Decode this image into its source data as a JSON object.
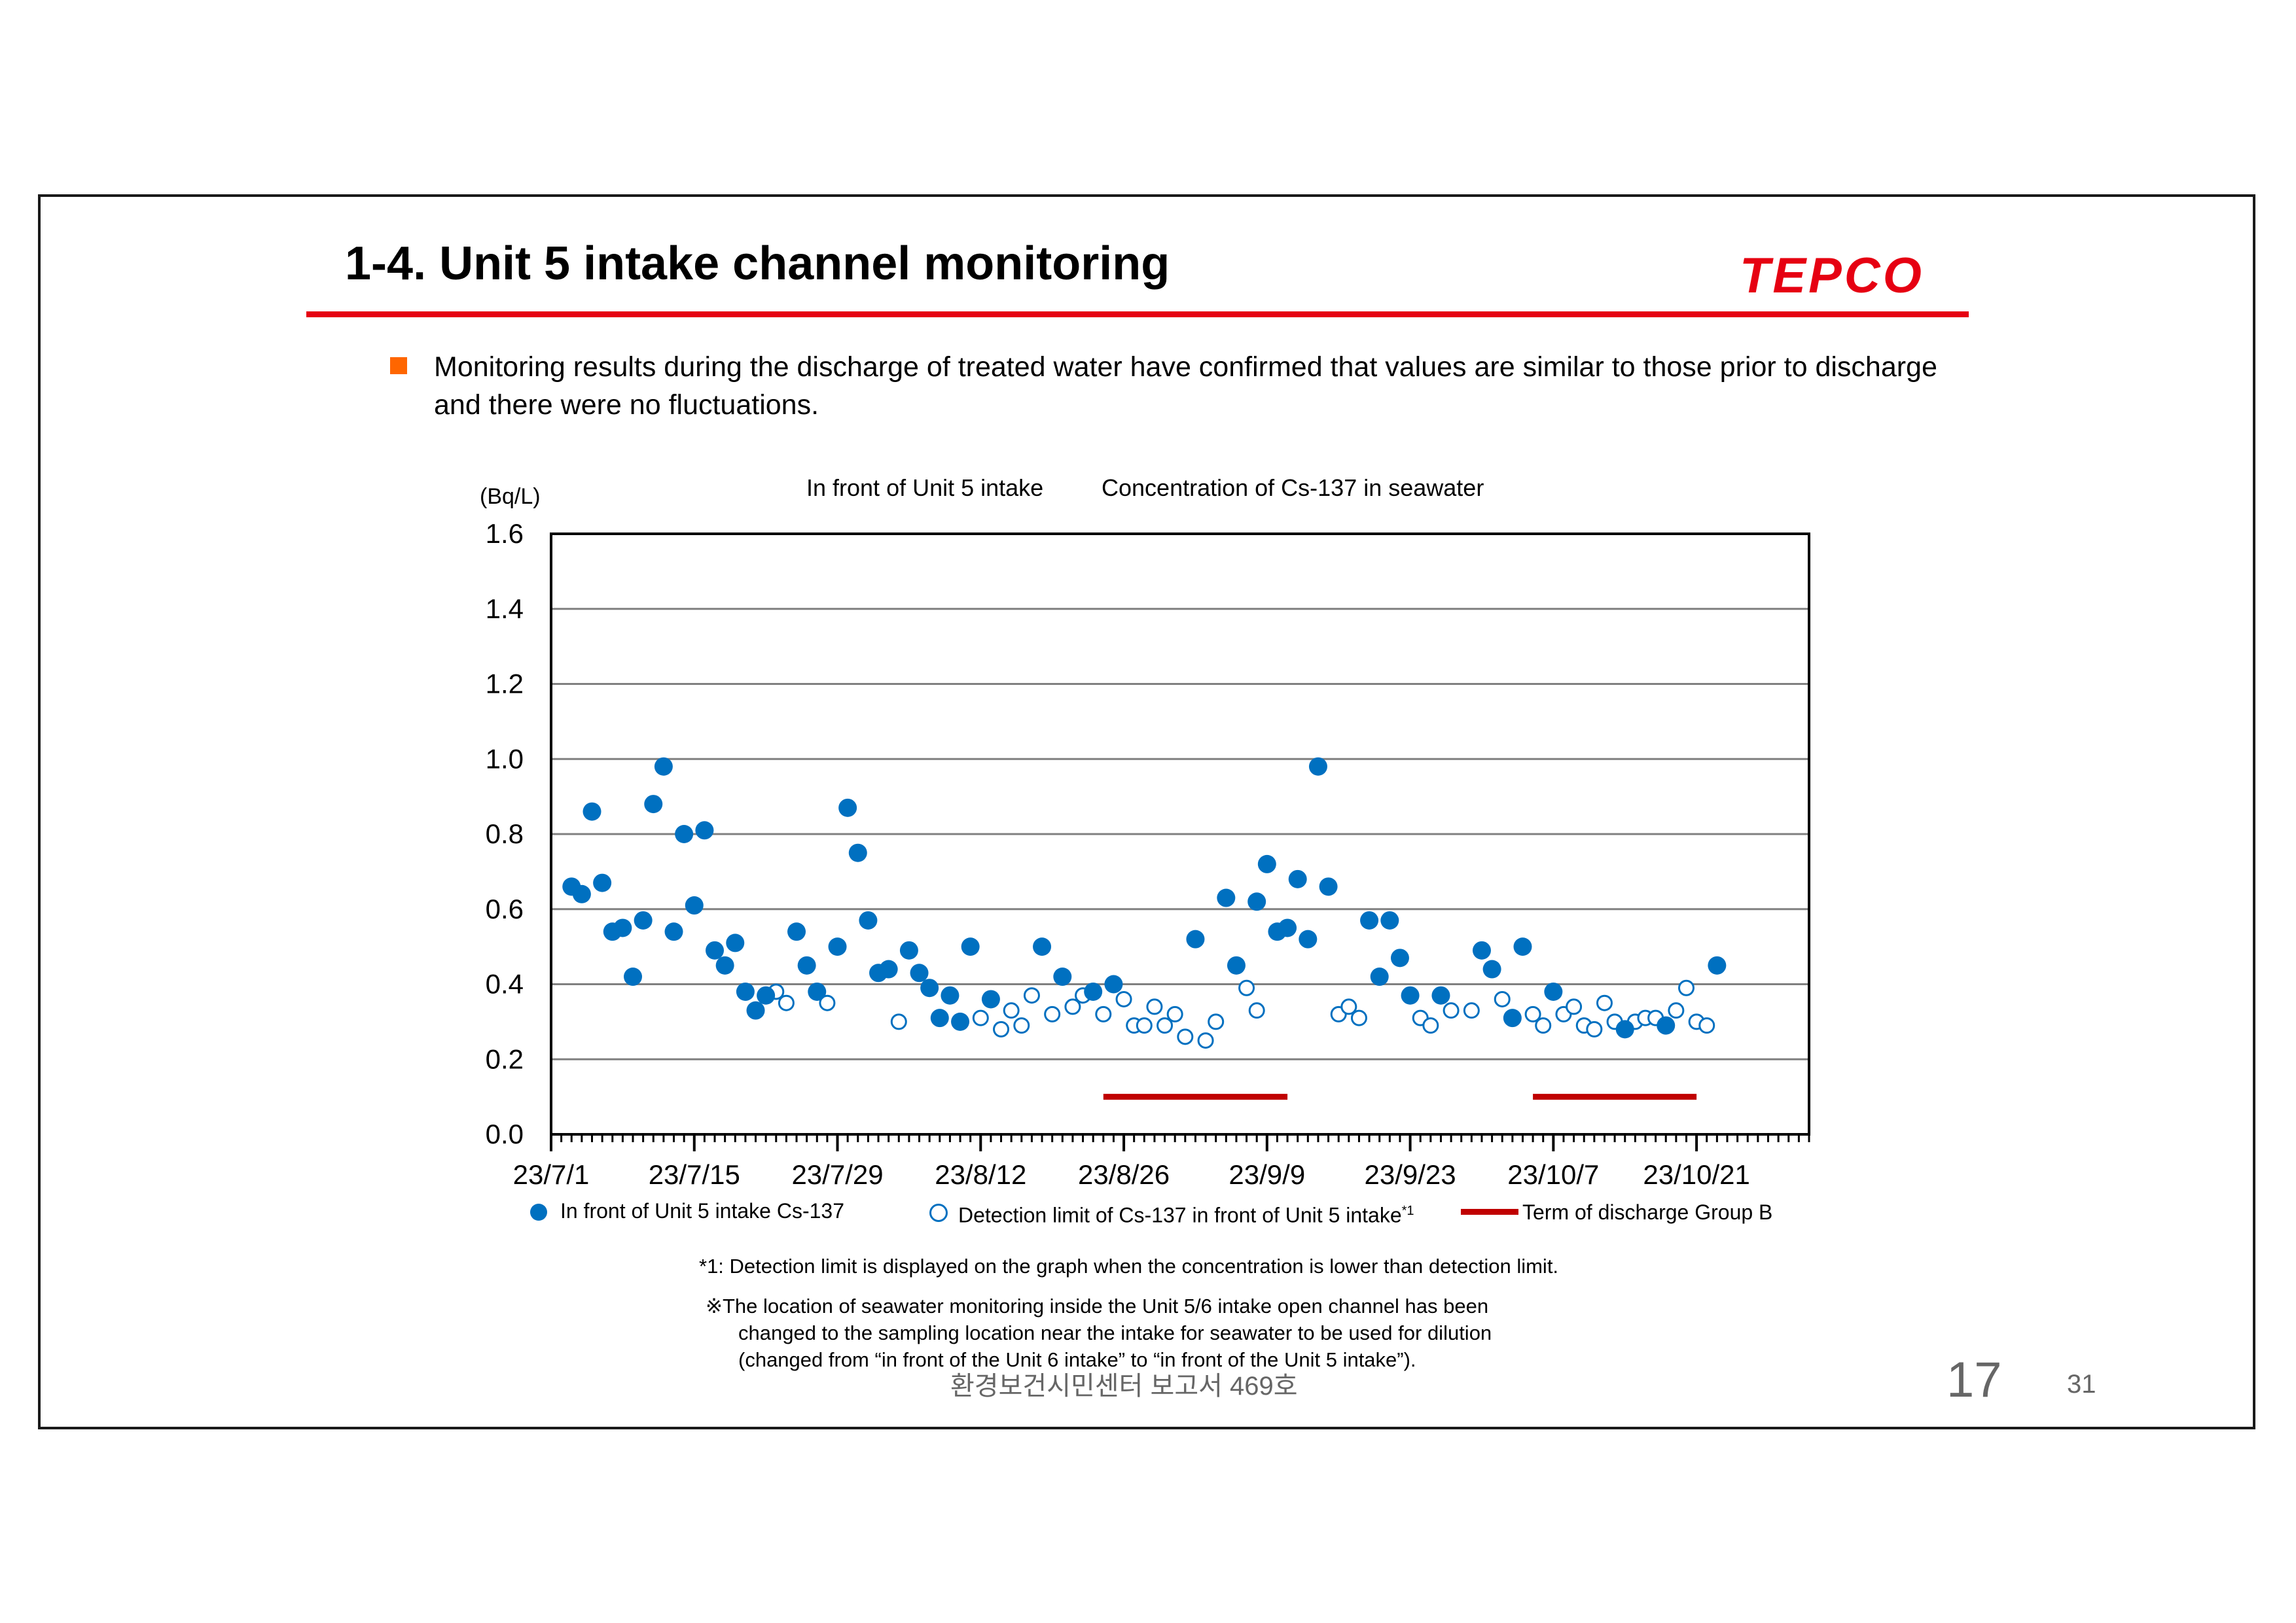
{
  "slide": {
    "title": "1-4. Unit 5 intake channel monitoring",
    "logo": "TEPCO",
    "bullet": "Monitoring results during the discharge of treated water have confirmed that values are similar to those prior to discharge and there were no fluctuations.",
    "note1": "*1: Detection limit is  displayed on the graph when the concentration is lower than detection limit.",
    "note2_line1": "※The location of seawater monitoring inside the Unit 5/6 intake open channel has been",
    "note2_line2": "changed to the sampling location near the intake for seawater to be used for dilution",
    "note2_line3": "(changed from “in front of the Unit 6 intake” to “in front of the Unit 5 intake”).",
    "footer_center": "환경보건시민센터 보고서 469호",
    "slide_number": "17",
    "page_number": "31"
  },
  "colors": {
    "accent_red": "#e60012",
    "bullet_orange": "#ff6600",
    "series_blue": "#0070c0",
    "discharge_red": "#c00000"
  },
  "chart_data": {
    "type": "scatter",
    "title_left": "In front of Unit 5 intake",
    "title_right": "Concentration of Cs-137 in seawater",
    "ylabel": "(Bq/L)",
    "ylim": [
      0,
      1.6
    ],
    "yticks": [
      "0.0",
      "0.2",
      "0.4",
      "0.6",
      "0.8",
      "1.0",
      "1.2",
      "1.4",
      "1.6"
    ],
    "xlim": [
      "2023-07-01",
      "2023-10-31"
    ],
    "xticks": [
      {
        "date": "2023-07-01",
        "label": "23/7/1"
      },
      {
        "date": "2023-07-15",
        "label": "23/7/15"
      },
      {
        "date": "2023-07-29",
        "label": "23/7/29"
      },
      {
        "date": "2023-08-12",
        "label": "23/8/12"
      },
      {
        "date": "2023-08-26",
        "label": "23/8/26"
      },
      {
        "date": "2023-09-09",
        "label": "23/9/9"
      },
      {
        "date": "2023-09-23",
        "label": "23/9/23"
      },
      {
        "date": "2023-10-07",
        "label": "23/10/7"
      },
      {
        "date": "2023-10-21",
        "label": "23/10/21"
      }
    ],
    "grid": true,
    "legend_position": "bottom",
    "series": [
      {
        "name": "In front of Unit 5 intake  Cs-137",
        "marker": "filled-circle",
        "points": [
          [
            "2023-07-03",
            0.66
          ],
          [
            "2023-07-04",
            0.64
          ],
          [
            "2023-07-05",
            0.86
          ],
          [
            "2023-07-06",
            0.67
          ],
          [
            "2023-07-07",
            0.54
          ],
          [
            "2023-07-08",
            0.55
          ],
          [
            "2023-07-09",
            0.42
          ],
          [
            "2023-07-10",
            0.57
          ],
          [
            "2023-07-11",
            0.88
          ],
          [
            "2023-07-12",
            0.98
          ],
          [
            "2023-07-13",
            0.54
          ],
          [
            "2023-07-14",
            0.8
          ],
          [
            "2023-07-15",
            0.61
          ],
          [
            "2023-07-16",
            0.81
          ],
          [
            "2023-07-17",
            0.49
          ],
          [
            "2023-07-18",
            0.45
          ],
          [
            "2023-07-19",
            0.51
          ],
          [
            "2023-07-20",
            0.38
          ],
          [
            "2023-07-21",
            0.33
          ],
          [
            "2023-07-22",
            0.37
          ],
          [
            "2023-07-25",
            0.54
          ],
          [
            "2023-07-26",
            0.45
          ],
          [
            "2023-07-27",
            0.38
          ],
          [
            "2023-07-29",
            0.5
          ],
          [
            "2023-07-30",
            0.87
          ],
          [
            "2023-07-31",
            0.75
          ],
          [
            "2023-08-01",
            0.57
          ],
          [
            "2023-08-02",
            0.43
          ],
          [
            "2023-08-03",
            0.44
          ],
          [
            "2023-08-05",
            0.49
          ],
          [
            "2023-08-06",
            0.43
          ],
          [
            "2023-08-07",
            0.39
          ],
          [
            "2023-08-08",
            0.31
          ],
          [
            "2023-08-09",
            0.37
          ],
          [
            "2023-08-10",
            0.3
          ],
          [
            "2023-08-11",
            0.5
          ],
          [
            "2023-08-13",
            0.36
          ],
          [
            "2023-08-18",
            0.5
          ],
          [
            "2023-08-20",
            0.42
          ],
          [
            "2023-08-23",
            0.38
          ],
          [
            "2023-08-25",
            0.4
          ],
          [
            "2023-09-02",
            0.52
          ],
          [
            "2023-09-05",
            0.63
          ],
          [
            "2023-09-06",
            0.45
          ],
          [
            "2023-09-08",
            0.62
          ],
          [
            "2023-09-09",
            0.72
          ],
          [
            "2023-09-10",
            0.54
          ],
          [
            "2023-09-11",
            0.55
          ],
          [
            "2023-09-12",
            0.68
          ],
          [
            "2023-09-13",
            0.52
          ],
          [
            "2023-09-14",
            0.98
          ],
          [
            "2023-09-15",
            0.66
          ],
          [
            "2023-09-19",
            0.57
          ],
          [
            "2023-09-20",
            0.42
          ],
          [
            "2023-09-21",
            0.57
          ],
          [
            "2023-09-22",
            0.47
          ],
          [
            "2023-09-23",
            0.37
          ],
          [
            "2023-09-26",
            0.37
          ],
          [
            "2023-09-30",
            0.49
          ],
          [
            "2023-10-01",
            0.44
          ],
          [
            "2023-10-03",
            0.31
          ],
          [
            "2023-10-04",
            0.5
          ],
          [
            "2023-10-07",
            0.38
          ],
          [
            "2023-10-14",
            0.28
          ],
          [
            "2023-10-18",
            0.29
          ],
          [
            "2023-10-23",
            0.45
          ]
        ]
      },
      {
        "name": "Detection limit of Cs-137 in front of Unit 5 intake",
        "name_superscript": "*1",
        "marker": "open-circle",
        "points": [
          [
            "2023-07-23",
            0.38
          ],
          [
            "2023-07-24",
            0.35
          ],
          [
            "2023-07-28",
            0.35
          ],
          [
            "2023-08-04",
            0.3
          ],
          [
            "2023-08-12",
            0.31
          ],
          [
            "2023-08-14",
            0.28
          ],
          [
            "2023-08-15",
            0.33
          ],
          [
            "2023-08-16",
            0.29
          ],
          [
            "2023-08-17",
            0.37
          ],
          [
            "2023-08-19",
            0.32
          ],
          [
            "2023-08-21",
            0.34
          ],
          [
            "2023-08-22",
            0.37
          ],
          [
            "2023-08-24",
            0.32
          ],
          [
            "2023-08-26",
            0.36
          ],
          [
            "2023-08-27",
            0.29
          ],
          [
            "2023-08-28",
            0.29
          ],
          [
            "2023-08-29",
            0.34
          ],
          [
            "2023-08-30",
            0.29
          ],
          [
            "2023-08-31",
            0.32
          ],
          [
            "2023-09-01",
            0.26
          ],
          [
            "2023-09-03",
            0.25
          ],
          [
            "2023-09-04",
            0.3
          ],
          [
            "2023-09-07",
            0.39
          ],
          [
            "2023-09-08",
            0.33
          ],
          [
            "2023-09-16",
            0.32
          ],
          [
            "2023-09-17",
            0.34
          ],
          [
            "2023-09-18",
            0.31
          ],
          [
            "2023-09-24",
            0.31
          ],
          [
            "2023-09-25",
            0.29
          ],
          [
            "2023-09-27",
            0.33
          ],
          [
            "2023-09-29",
            0.33
          ],
          [
            "2023-10-02",
            0.36
          ],
          [
            "2023-10-05",
            0.32
          ],
          [
            "2023-10-06",
            0.29
          ],
          [
            "2023-10-08",
            0.32
          ],
          [
            "2023-10-09",
            0.34
          ],
          [
            "2023-10-10",
            0.29
          ],
          [
            "2023-10-11",
            0.28
          ],
          [
            "2023-10-12",
            0.35
          ],
          [
            "2023-10-13",
            0.3
          ],
          [
            "2023-10-15",
            0.3
          ],
          [
            "2023-10-16",
            0.31
          ],
          [
            "2023-10-17",
            0.31
          ],
          [
            "2023-10-19",
            0.33
          ],
          [
            "2023-10-20",
            0.39
          ],
          [
            "2023-10-21",
            0.3
          ],
          [
            "2023-10-22",
            0.29
          ]
        ]
      }
    ],
    "discharge_periods": {
      "name": "Term of discharge Group B",
      "ranges": [
        [
          "2023-08-24",
          "2023-09-11"
        ],
        [
          "2023-10-05",
          "2023-10-21"
        ]
      ],
      "y": 0.1
    }
  }
}
